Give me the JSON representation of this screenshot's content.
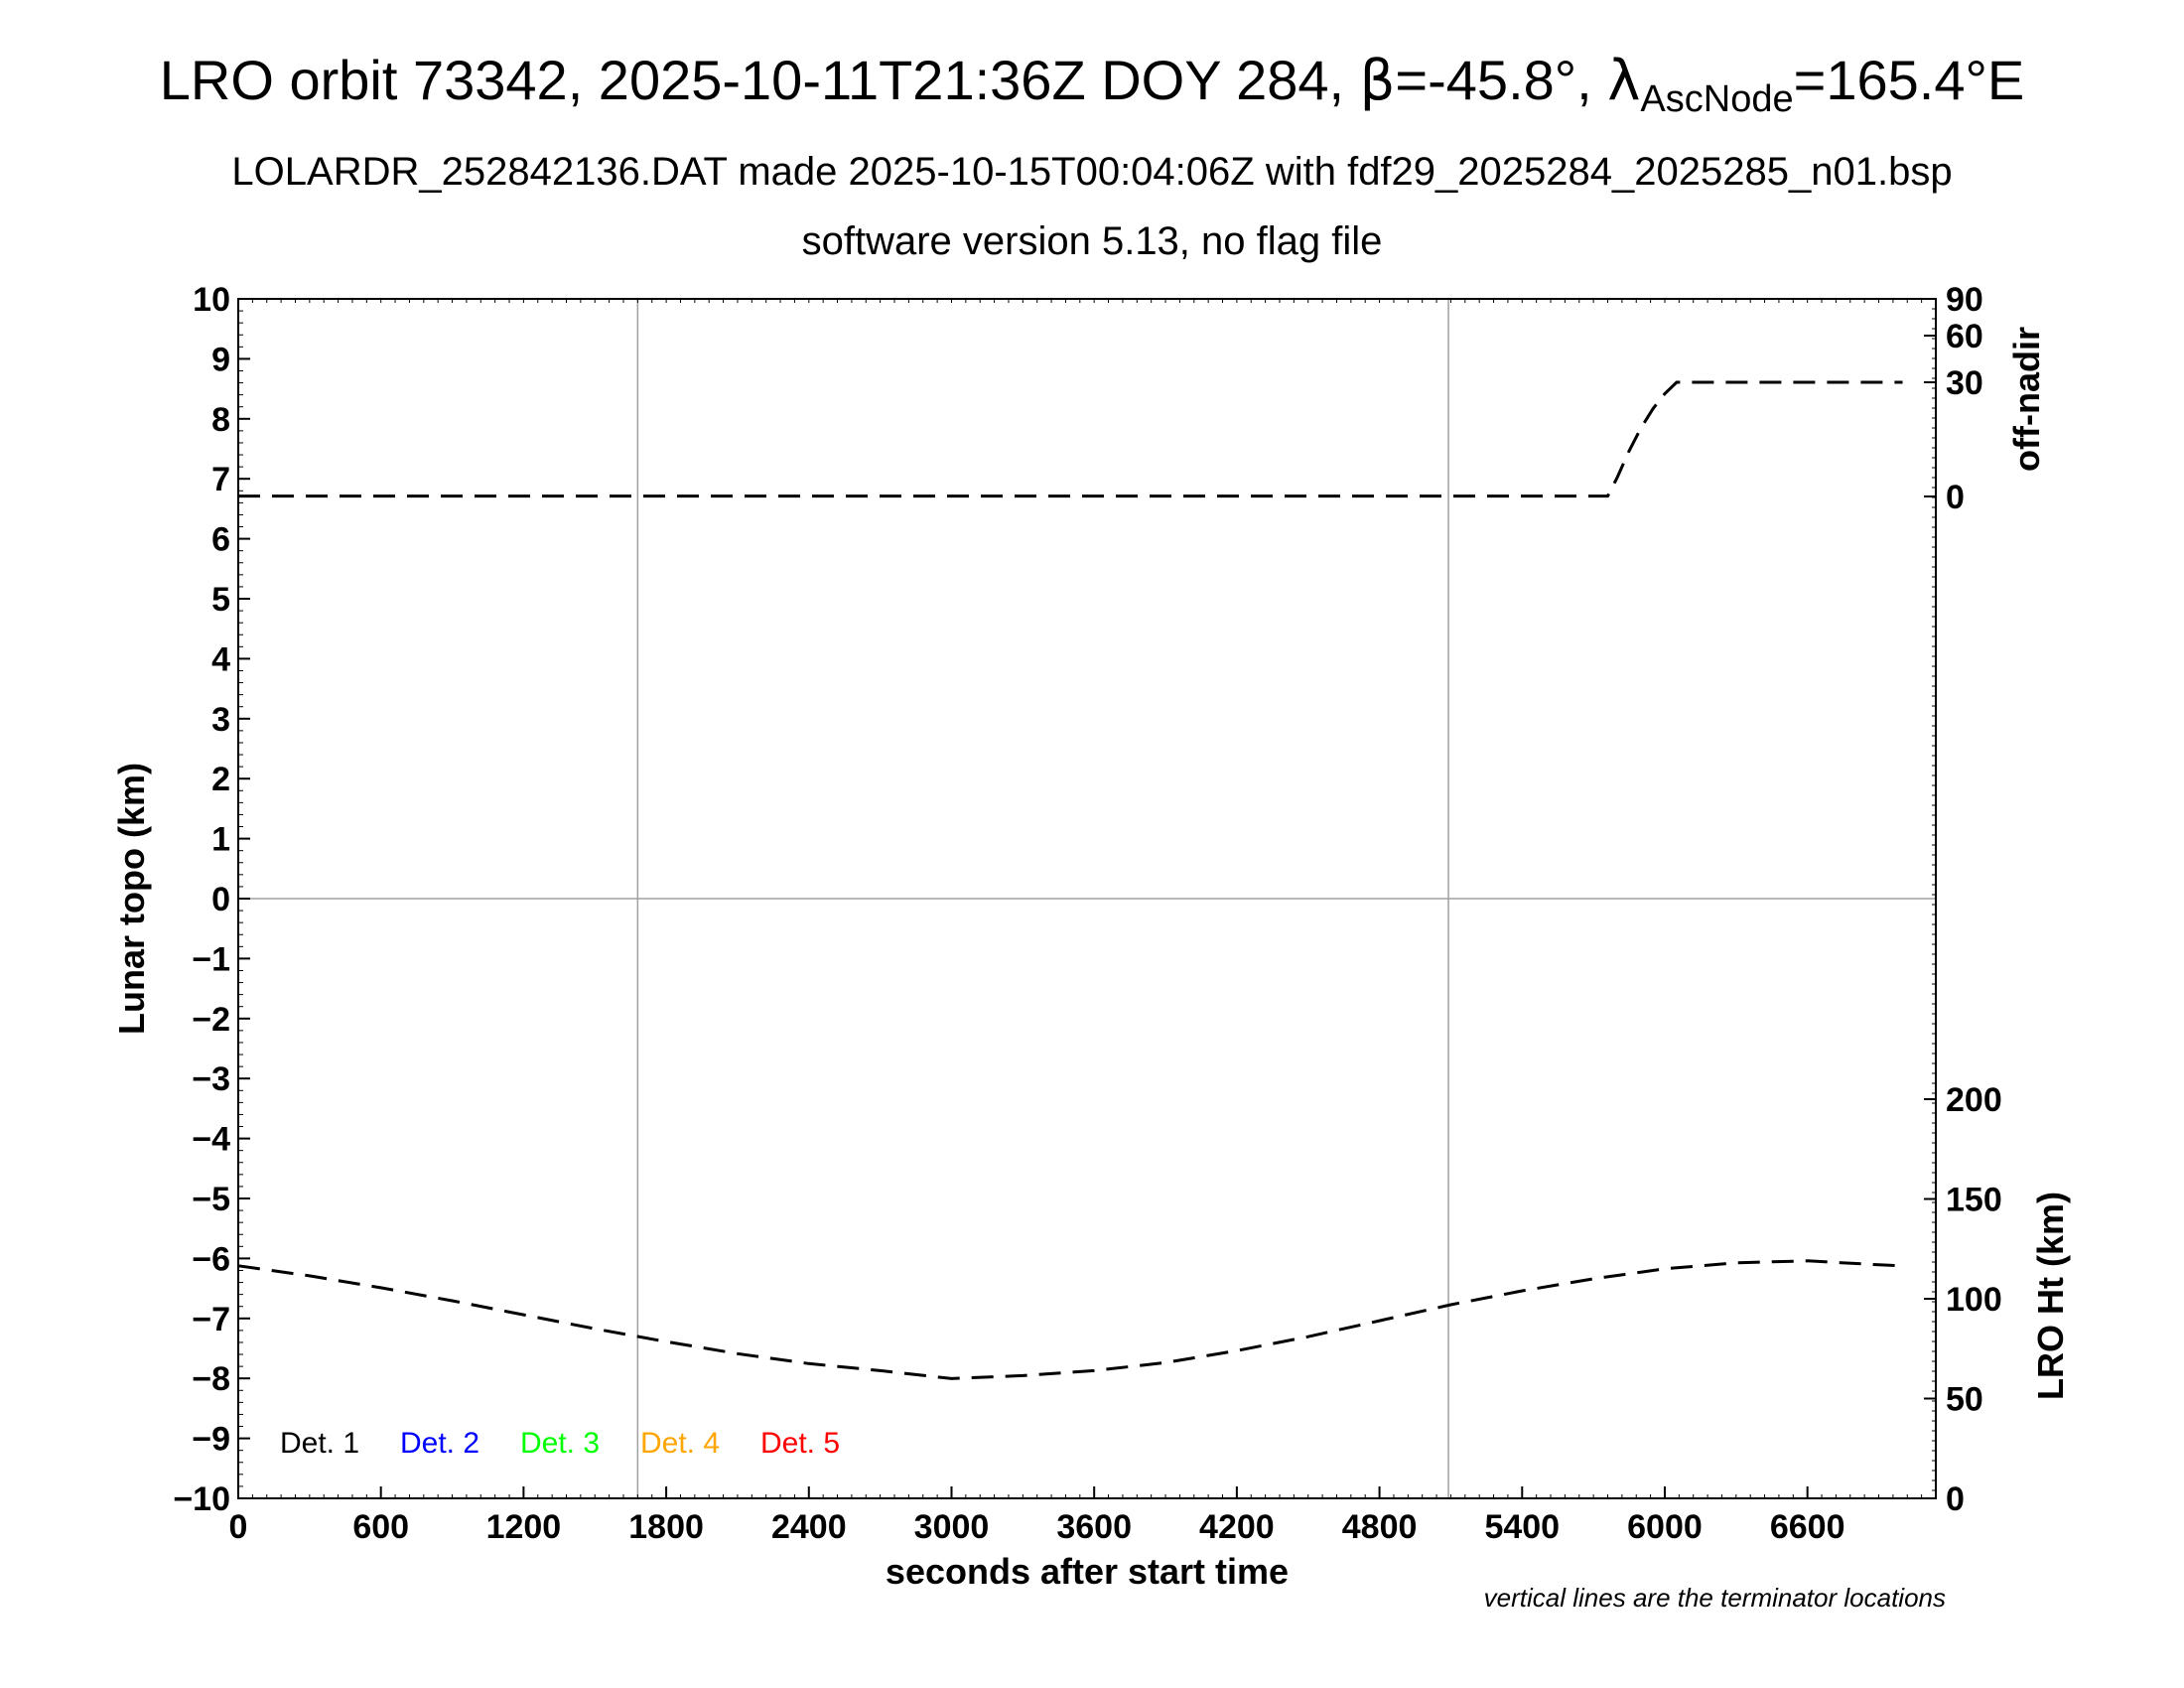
{
  "title": {
    "prefix": "LRO orbit 73342, 2025-10-11T21:36Z DOY 284, ",
    "beta_symbol": "β",
    "beta_value": "=-45.8°, ",
    "lambda_symbol": "λ",
    "lambda_sub": "AscNode",
    "lambda_value": "=165.4°E"
  },
  "subtitle": "LOLARDR_252842136.DAT made 2025-10-15T00:04:06Z with fdf29_2025284_2025285_n01.bsp",
  "subtitle2": "software version 5.13, no flag file",
  "footnote": "vertical lines are the terminator locations",
  "chart_data": {
    "type": "line",
    "xlabel": "seconds after start time",
    "ylabel_left": "Lunar topo (km)",
    "ylabel_right_top": "off-nadir",
    "ylabel_right_bottom": "LRO Ht (km)",
    "xlim": [
      0,
      7140
    ],
    "x_ticks": [
      0,
      600,
      1200,
      1800,
      2400,
      3000,
      3600,
      4200,
      4800,
      5400,
      6000,
      6600
    ],
    "ylim_left": [
      -10,
      10
    ],
    "y_ticks_left": [
      10,
      9,
      8,
      7,
      6,
      5,
      4,
      3,
      2,
      1,
      0,
      -1,
      -2,
      -3,
      -4,
      -5,
      -6,
      -7,
      -8,
      -9,
      -10
    ],
    "y_tick_labels_left": [
      "10",
      "9",
      "8",
      "7",
      "6",
      "5",
      "4",
      "3",
      "2",
      "1",
      "0",
      "−1",
      "−2",
      "−3",
      "−4",
      "−5",
      "−6",
      "−7",
      "−8",
      "−9",
      "−10"
    ],
    "right_top_ticks": [
      "90",
      "60",
      "30",
      "0"
    ],
    "right_bottom_ticks": [
      "200",
      "150",
      "100",
      "50",
      "0"
    ],
    "terminator_lines_x": [
      1680,
      5090
    ],
    "zero_line_y": 0,
    "legend": [
      {
        "label": "Det. 1",
        "color": "#000000"
      },
      {
        "label": "Det. 2",
        "color": "#0000ff"
      },
      {
        "label": "Det. 3",
        "color": "#00ff00"
      },
      {
        "label": "Det. 4",
        "color": "#ffa500"
      },
      {
        "label": "Det. 5",
        "color": "#ff0000"
      }
    ],
    "series": [
      {
        "unit": "off-nadir deg",
        "style": "dashed",
        "x": [
          0,
          1000,
          2000,
          3000,
          4000,
          5000,
          5760,
          5800,
          5850,
          5900,
          5950,
          6000,
          6050,
          6200,
          6500,
          7000
        ],
        "y": [
          0.1,
          0.1,
          0.1,
          0.1,
          0.1,
          0.1,
          0.1,
          5,
          12,
          18,
          23,
          27,
          30,
          30,
          30,
          30
        ]
      },
      {
        "unit": "LRO Ht km",
        "style": "dashed",
        "x": [
          0,
          300,
          600,
          900,
          1200,
          1500,
          1800,
          2100,
          2400,
          2700,
          3000,
          3300,
          3600,
          3900,
          4200,
          4500,
          4800,
          5100,
          5400,
          5700,
          6000,
          6300,
          6600,
          6900,
          7000
        ],
        "y": [
          116.5,
          111.5,
          105.5,
          99,
          92,
          85,
          78.5,
          72.5,
          67.5,
          64,
          60,
          61.5,
          64,
          68,
          74,
          81,
          89,
          97,
          104,
          110,
          115,
          118,
          119,
          117,
          116.5
        ]
      }
    ]
  }
}
